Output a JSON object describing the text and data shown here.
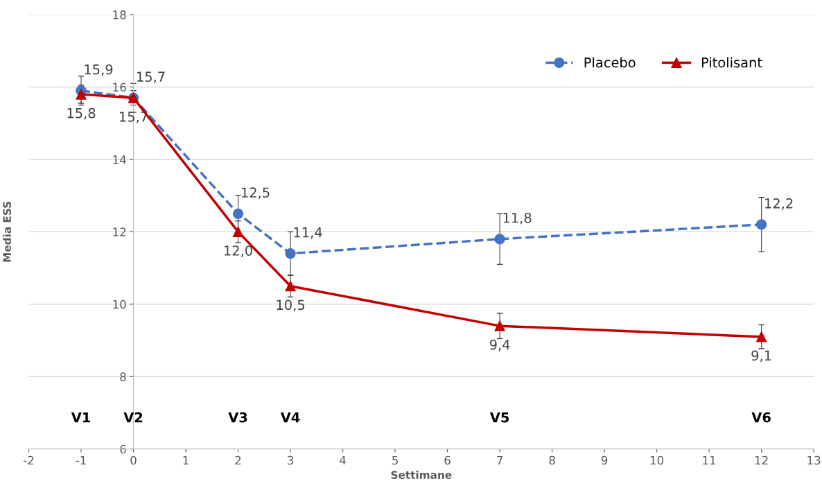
{
  "chart_data": {
    "type": "line",
    "xlabel": "Settimane",
    "ylabel": "Media ESS",
    "x": [
      -1,
      0,
      2,
      3,
      7,
      12
    ],
    "xlim": [
      -2,
      13
    ],
    "xticks": [
      -2,
      -1,
      0,
      1,
      2,
      3,
      4,
      5,
      6,
      7,
      8,
      9,
      10,
      11,
      12,
      13
    ],
    "ylim": [
      6,
      18
    ],
    "yticks": [
      6,
      8,
      10,
      12,
      14,
      16,
      18
    ],
    "grid": "y",
    "legend": "top right",
    "series": [
      {
        "name": "Placebo",
        "color": "#4472c4",
        "marker": "circle",
        "line_style": "dashed",
        "values": [
          15.9,
          15.7,
          12.5,
          11.4,
          11.8,
          12.2
        ],
        "value_labels": [
          "15,9",
          "15,7",
          "12,5",
          "11,4",
          "11,8",
          "12,2"
        ],
        "errors": [
          0.4,
          0.4,
          0.5,
          0.6,
          0.7,
          0.75
        ]
      },
      {
        "name": "Pitolisant",
        "color": "#c00000",
        "marker": "triangle",
        "line_style": "solid",
        "values": [
          15.8,
          15.7,
          12.0,
          10.5,
          9.4,
          9.1
        ],
        "value_labels": [
          "15,8",
          "15,7",
          "12,0",
          "10,5",
          "9,4",
          "9,1"
        ],
        "errors": [
          0.25,
          0.2,
          0.3,
          0.3,
          0.35,
          0.33
        ]
      }
    ],
    "annotations": [
      "V1",
      "V2",
      "V3",
      "V4",
      "V5",
      "V6"
    ]
  }
}
